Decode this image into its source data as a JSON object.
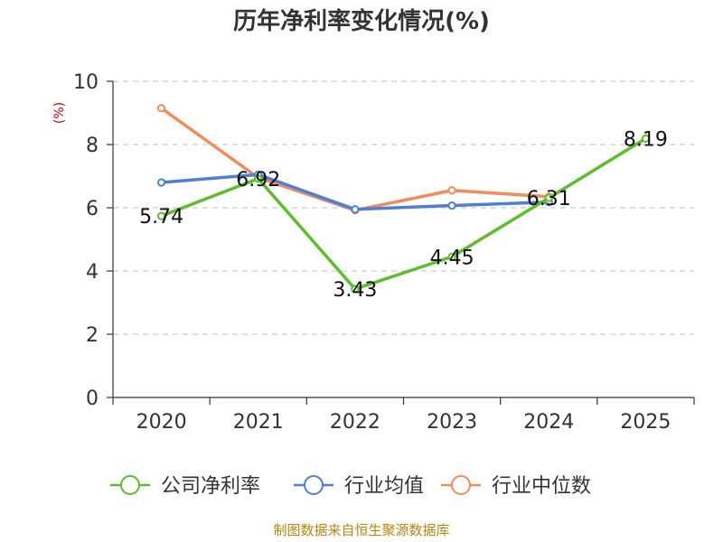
{
  "chart_data": {
    "type": "line",
    "title": "历年净利率变化情况(%)",
    "unit_label": "(%)",
    "categories": [
      "2020",
      "2021",
      "2022",
      "2023",
      "2024",
      "2025"
    ],
    "ylim": [
      0,
      10
    ],
    "yticks": [
      0,
      2,
      4,
      6,
      8,
      10
    ],
    "grid": true,
    "legend_position": "bottom",
    "series": [
      {
        "name": "公司净利率",
        "color": "#5cbf2a",
        "values": [
          5.74,
          6.92,
          3.43,
          4.45,
          6.31,
          8.19
        ],
        "labels": [
          "5.74",
          "6.92",
          "3.43",
          "4.45",
          "6.31",
          "8.19"
        ]
      },
      {
        "name": "行业均值",
        "color": "#4e7fd8",
        "values": [
          6.8,
          7.05,
          5.95,
          6.07,
          6.18,
          null
        ]
      },
      {
        "name": "行业中位数",
        "color": "#f28c5a",
        "values": [
          9.15,
          6.95,
          5.92,
          6.55,
          6.35,
          null
        ]
      }
    ],
    "source": "制图数据来自恒生聚源数据库"
  }
}
